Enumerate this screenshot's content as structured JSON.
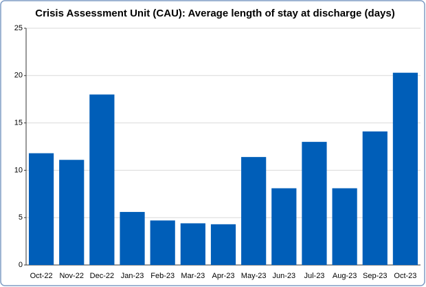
{
  "chart_data": {
    "type": "bar",
    "title": "Crisis Assessment Unit (CAU): Average length of stay at discharge (days)",
    "categories": [
      "Oct-22",
      "Nov-22",
      "Dec-22",
      "Jan-23",
      "Feb-23",
      "Mar-23",
      "Apr-23",
      "May-23",
      "Jun-23",
      "Jul-23",
      "Aug-23",
      "Sep-23",
      "Oct-23"
    ],
    "values": [
      11.8,
      11.1,
      18.0,
      5.6,
      4.7,
      4.4,
      4.3,
      11.4,
      8.1,
      13.0,
      8.1,
      14.1,
      20.3
    ],
    "color": "#005eb8",
    "ylim": [
      0,
      25
    ],
    "yticks": [
      0,
      5,
      10,
      15,
      20,
      25
    ],
    "grid": true
  }
}
